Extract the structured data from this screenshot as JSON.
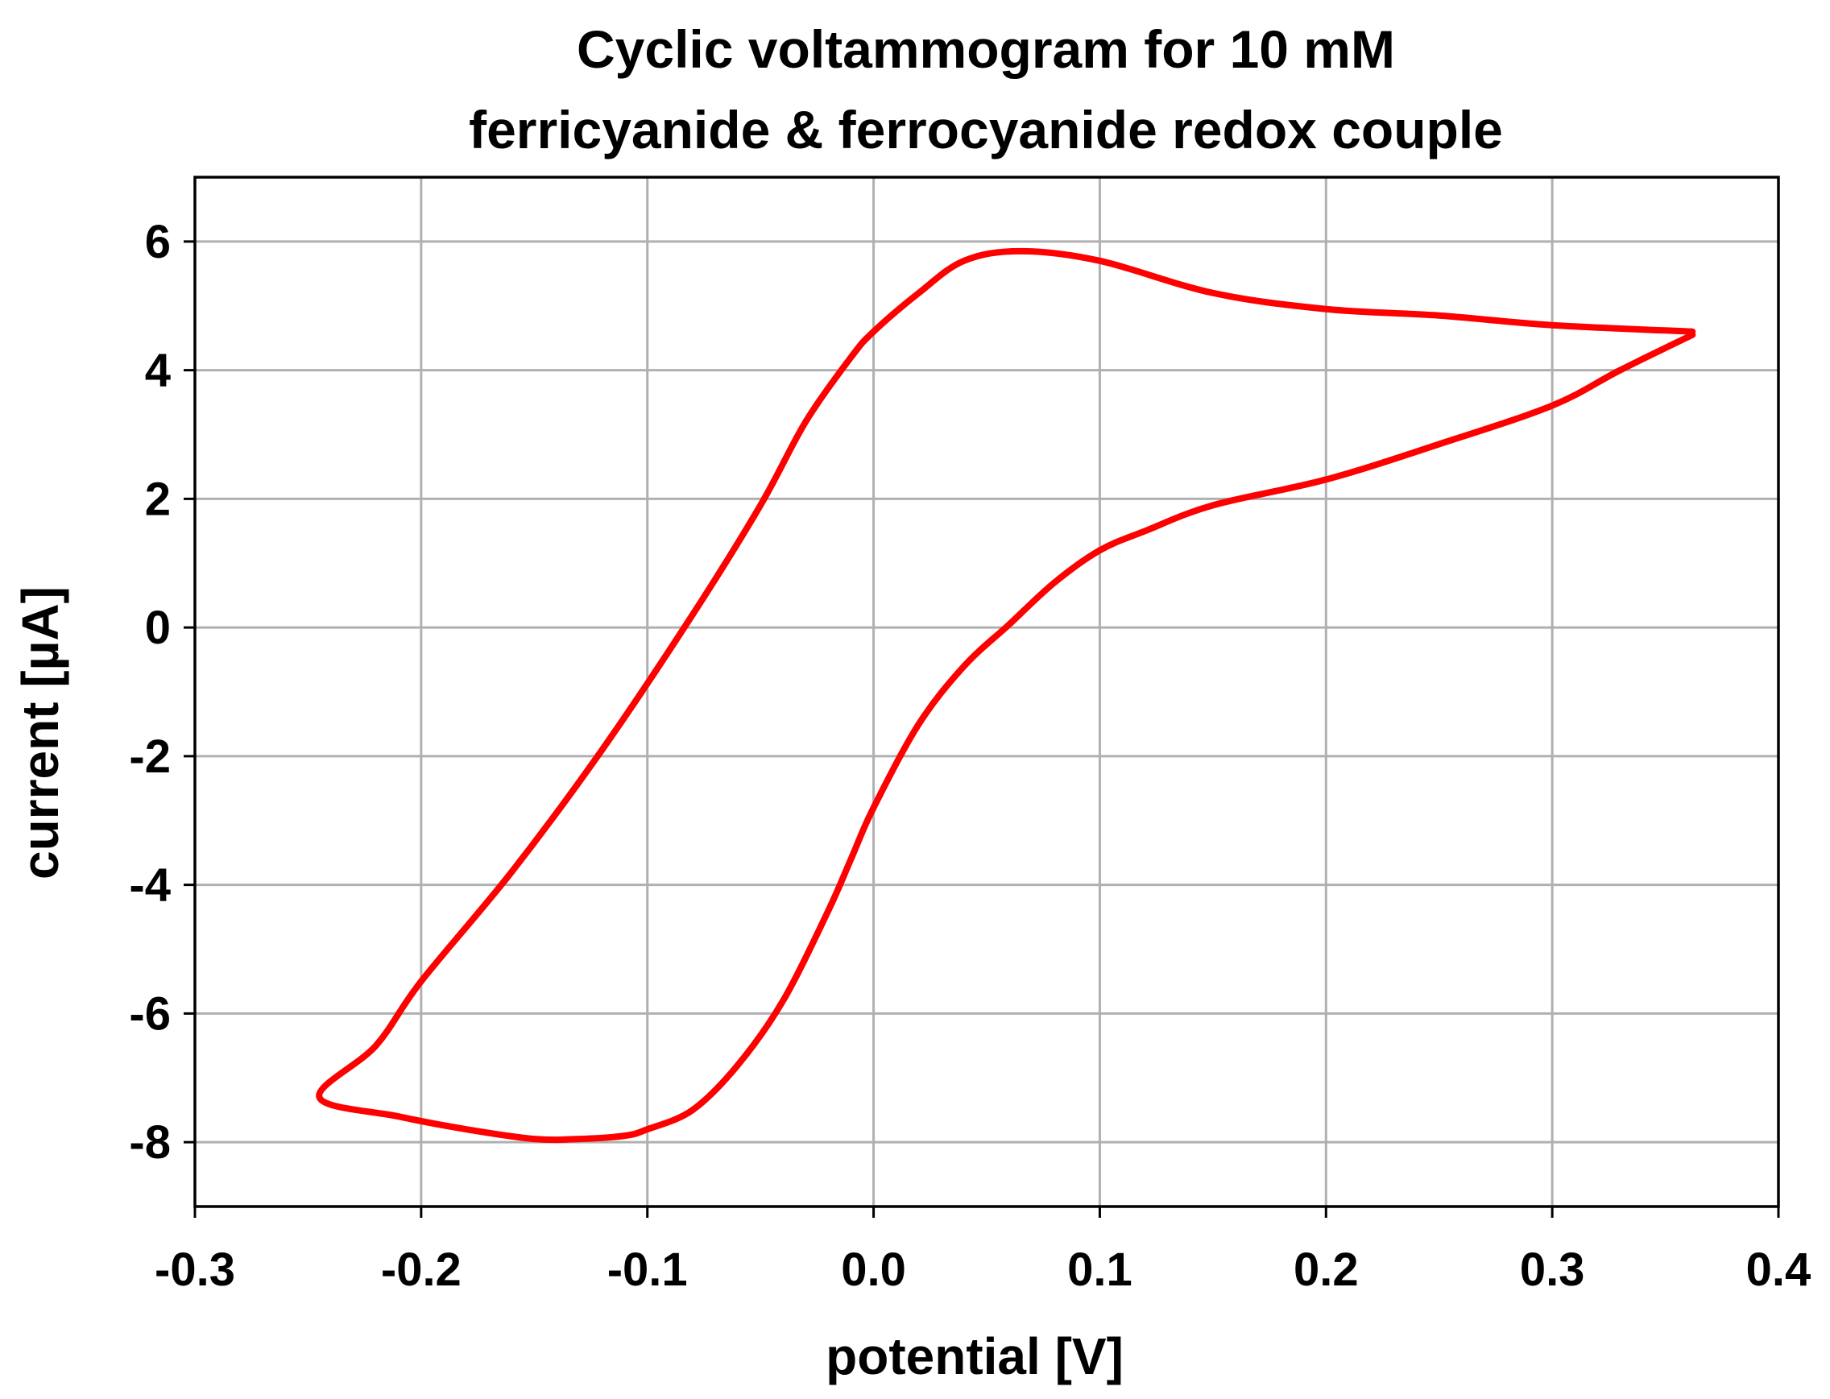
{
  "chart_data": {
    "type": "line",
    "title_lines": [
      "Cyclic voltammogram for 10 mM",
      "ferricyanide & ferrocyanide redox couple"
    ],
    "xlabel": "potential [V]",
    "ylabel": "current [µA]",
    "xlim": [
      -0.3,
      0.4
    ],
    "ylim": [
      -9,
      7
    ],
    "xticks": [
      -0.3,
      -0.2,
      -0.1,
      0.0,
      0.1,
      0.2,
      0.3,
      0.4
    ],
    "xtick_labels": [
      "-0.3",
      "-0.2",
      "-0.1",
      "0.0",
      "0.1",
      "0.2",
      "0.3",
      "0.4"
    ],
    "yticks": [
      -8,
      -6,
      -4,
      -2,
      0,
      2,
      4,
      6
    ],
    "ytick_labels": [
      "-8",
      "-6",
      "-4",
      "-2",
      "0",
      "2",
      "4",
      "6"
    ],
    "grid": true,
    "series": [
      {
        "name": "cyclic voltammogram",
        "color": "#ff0000",
        "x": [
          0.362,
          0.33,
          0.3,
          0.25,
          0.2,
          0.15,
          0.12,
          0.1,
          0.08,
          0.06,
          0.04,
          0.02,
          0.0,
          -0.01,
          -0.02,
          -0.04,
          -0.06,
          -0.08,
          -0.1,
          -0.11,
          -0.13,
          -0.15,
          -0.18,
          -0.21,
          -0.245,
          -0.22,
          -0.2,
          -0.16,
          -0.12,
          -0.08,
          -0.05,
          -0.03,
          -0.01,
          0.0,
          0.02,
          0.04,
          0.065,
          0.1,
          0.15,
          0.2,
          0.25,
          0.3,
          0.362
        ],
        "y": [
          4.55,
          4.0,
          3.45,
          2.85,
          2.3,
          1.9,
          1.5,
          1.2,
          0.7,
          0.05,
          -0.6,
          -1.5,
          -2.8,
          -3.6,
          -4.4,
          -5.8,
          -6.8,
          -7.5,
          -7.8,
          -7.9,
          -7.95,
          -7.95,
          -7.8,
          -7.6,
          -7.3,
          -6.5,
          -5.5,
          -3.8,
          -1.9,
          0.2,
          1.9,
          3.2,
          4.2,
          4.6,
          5.2,
          5.7,
          5.85,
          5.7,
          5.2,
          4.95,
          4.85,
          4.7,
          4.6
        ]
      }
    ]
  }
}
